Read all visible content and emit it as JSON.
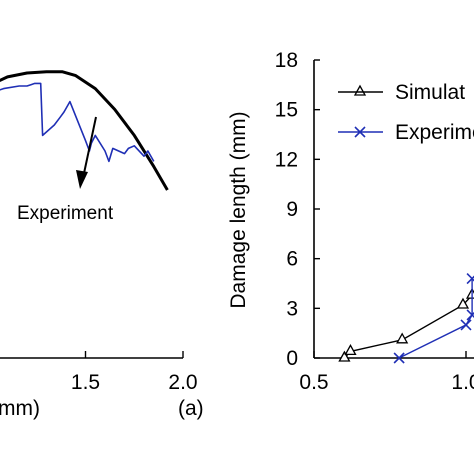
{
  "chart_data": [
    {
      "type": "line",
      "panel_label": "(a)",
      "xlabel": "mm)",
      "ylabel": "",
      "x_ticks": [
        "1.5",
        "2.0"
      ],
      "x_tick_values": [
        1.5,
        2.0
      ],
      "xlim": [
        1.0,
        2.0
      ],
      "ylim": [
        0,
        1
      ],
      "annotations": [
        {
          "text": "Experiment",
          "arrow_to": [
            1.55,
            0.62
          ]
        }
      ],
      "series": [
        {
          "color": "#000000",
          "x": [
            1.0,
            1.1,
            1.2,
            1.3,
            1.38,
            1.45,
            1.55,
            1.65,
            1.75,
            1.85,
            1.92
          ],
          "y": [
            0.95,
            0.985,
            1.0,
            1.005,
            1.005,
            0.99,
            0.94,
            0.86,
            0.76,
            0.64,
            0.55
          ]
        },
        {
          "color": "#1f2fb5",
          "x": [
            1.0,
            1.08,
            1.16,
            1.2,
            1.22,
            1.24,
            1.27,
            1.28,
            1.34,
            1.37,
            1.39,
            1.42,
            1.5,
            1.52,
            1.53,
            1.55,
            1.6,
            1.62,
            1.64,
            1.7,
            1.72,
            1.75,
            1.8,
            1.82,
            1.85
          ],
          "y": [
            0.92,
            0.94,
            0.95,
            0.95,
            0.955,
            0.96,
            0.96,
            0.76,
            0.8,
            0.83,
            0.85,
            0.89,
            0.74,
            0.7,
            0.73,
            0.76,
            0.7,
            0.66,
            0.71,
            0.69,
            0.71,
            0.72,
            0.68,
            0.7,
            0.66
          ]
        }
      ]
    },
    {
      "type": "line",
      "ylabel": "Damage length (mm)",
      "xlabel": "",
      "y_ticks": [
        "0",
        "3",
        "6",
        "9",
        "12",
        "15",
        "18"
      ],
      "y_tick_values": [
        0,
        3,
        6,
        9,
        12,
        15,
        18
      ],
      "ylim": [
        0,
        18
      ],
      "x_ticks": [
        "0.5",
        "1.0"
      ],
      "x_tick_values": [
        0.5,
        1.0
      ],
      "xlim": [
        0.5,
        1.0
      ],
      "legend": {
        "placement": "top-right"
      },
      "series": [
        {
          "name": "Simulat",
          "color": "#000000",
          "marker": "triangle",
          "x": [
            0.6,
            0.62,
            0.79,
            0.99,
            1.02
          ],
          "y": [
            0,
            0.4,
            1.1,
            3.2,
            3.8
          ]
        },
        {
          "name": "Experime",
          "color": "#1f2fb5",
          "marker": "x",
          "x": [
            0.78,
            1.0,
            1.02,
            1.02
          ],
          "y": [
            0,
            2.0,
            2.6,
            4.8
          ]
        }
      ]
    }
  ]
}
